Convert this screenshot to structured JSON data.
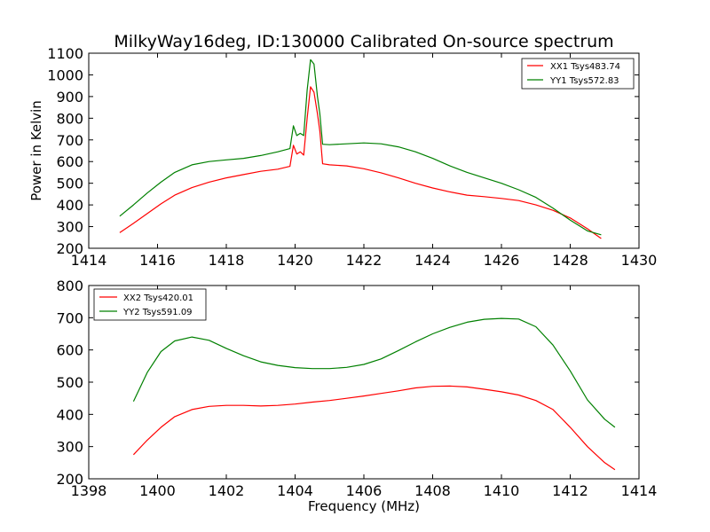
{
  "chart_data": [
    {
      "type": "line",
      "title": "MilkyWay16deg, ID:130000 Calibrated On-source spectrum",
      "xlabel": "",
      "ylabel": "Power in Kelvin",
      "xlim": [
        1414,
        1430
      ],
      "ylim": [
        200,
        1100
      ],
      "xticks": [
        "1414",
        "1416",
        "1418",
        "1420",
        "1422",
        "1424",
        "1426",
        "1428",
        "1430"
      ],
      "yticks": [
        "200",
        "300",
        "400",
        "500",
        "600",
        "700",
        "800",
        "900",
        "1000",
        "1100"
      ],
      "legend_position": "top-right",
      "grid": false,
      "series": [
        {
          "name": "XX1 Tsys483.74",
          "color": "#ff0000",
          "x": [
            1414.9,
            1415.3,
            1415.7,
            1416.1,
            1416.5,
            1417.0,
            1417.5,
            1418.0,
            1418.5,
            1419.0,
            1419.5,
            1419.85,
            1419.95,
            1420.05,
            1420.15,
            1420.25,
            1420.35,
            1420.45,
            1420.55,
            1420.65,
            1420.72,
            1420.8,
            1421.0,
            1421.5,
            1422.0,
            1422.5,
            1423.0,
            1423.5,
            1424.0,
            1424.5,
            1425.0,
            1425.5,
            1426.0,
            1426.5,
            1427.0,
            1427.5,
            1428.0,
            1428.5,
            1428.9
          ],
          "y": [
            272,
            315,
            360,
            405,
            445,
            480,
            505,
            525,
            540,
            555,
            565,
            578,
            675,
            635,
            645,
            630,
            800,
            945,
            920,
            820,
            740,
            590,
            585,
            580,
            567,
            548,
            525,
            500,
            478,
            460,
            445,
            438,
            430,
            420,
            400,
            375,
            340,
            290,
            245
          ]
        },
        {
          "name": "YY1 Tsys572.83",
          "color": "#008000",
          "x": [
            1414.9,
            1415.3,
            1415.7,
            1416.1,
            1416.5,
            1417.0,
            1417.5,
            1418.0,
            1418.5,
            1419.0,
            1419.5,
            1419.85,
            1419.95,
            1420.05,
            1420.15,
            1420.25,
            1420.35,
            1420.45,
            1420.55,
            1420.65,
            1420.72,
            1420.8,
            1421.0,
            1421.5,
            1422.0,
            1422.5,
            1423.0,
            1423.5,
            1424.0,
            1424.5,
            1425.0,
            1425.5,
            1426.0,
            1426.5,
            1427.0,
            1427.5,
            1428.0,
            1428.5,
            1428.9
          ],
          "y": [
            348,
            400,
            455,
            505,
            550,
            585,
            600,
            608,
            615,
            628,
            645,
            660,
            765,
            720,
            730,
            720,
            930,
            1070,
            1050,
            900,
            820,
            680,
            678,
            682,
            686,
            682,
            668,
            645,
            615,
            580,
            550,
            525,
            500,
            470,
            435,
            385,
            330,
            280,
            262
          ]
        }
      ]
    },
    {
      "type": "line",
      "title": "",
      "xlabel": "Frequency (MHz)",
      "ylabel": "",
      "xlim": [
        1398,
        1414
      ],
      "ylim": [
        200,
        800
      ],
      "xticks": [
        "1398",
        "1400",
        "1402",
        "1404",
        "1406",
        "1408",
        "1410",
        "1412",
        "1414"
      ],
      "yticks": [
        "200",
        "300",
        "400",
        "500",
        "600",
        "700",
        "800"
      ],
      "legend_position": "top-left",
      "grid": false,
      "series": [
        {
          "name": "XX2 Tsys420.01",
          "color": "#ff0000",
          "x": [
            1399.3,
            1399.7,
            1400.1,
            1400.5,
            1401.0,
            1401.5,
            1402.0,
            1402.5,
            1403.0,
            1403.5,
            1404.0,
            1404.5,
            1405.0,
            1405.5,
            1406.0,
            1406.5,
            1407.0,
            1407.5,
            1408.0,
            1408.5,
            1409.0,
            1409.5,
            1410.0,
            1410.5,
            1411.0,
            1411.5,
            1412.0,
            1412.5,
            1413.0,
            1413.3
          ],
          "y": [
            275,
            320,
            360,
            393,
            415,
            425,
            428,
            428,
            426,
            428,
            432,
            438,
            443,
            450,
            457,
            465,
            473,
            482,
            487,
            488,
            485,
            478,
            470,
            460,
            443,
            415,
            360,
            300,
            250,
            228
          ]
        },
        {
          "name": "YY2 Tsys591.09",
          "color": "#008000",
          "x": [
            1399.3,
            1399.7,
            1400.1,
            1400.5,
            1401.0,
            1401.5,
            1402.0,
            1402.5,
            1403.0,
            1403.5,
            1404.0,
            1404.5,
            1405.0,
            1405.5,
            1406.0,
            1406.5,
            1407.0,
            1407.5,
            1408.0,
            1408.5,
            1409.0,
            1409.5,
            1410.0,
            1410.5,
            1411.0,
            1411.5,
            1412.0,
            1412.5,
            1413.0,
            1413.3
          ],
          "y": [
            440,
            530,
            595,
            628,
            640,
            630,
            605,
            582,
            563,
            552,
            545,
            542,
            542,
            546,
            555,
            572,
            598,
            625,
            650,
            670,
            686,
            695,
            698,
            696,
            672,
            615,
            535,
            445,
            385,
            360
          ]
        }
      ]
    }
  ]
}
